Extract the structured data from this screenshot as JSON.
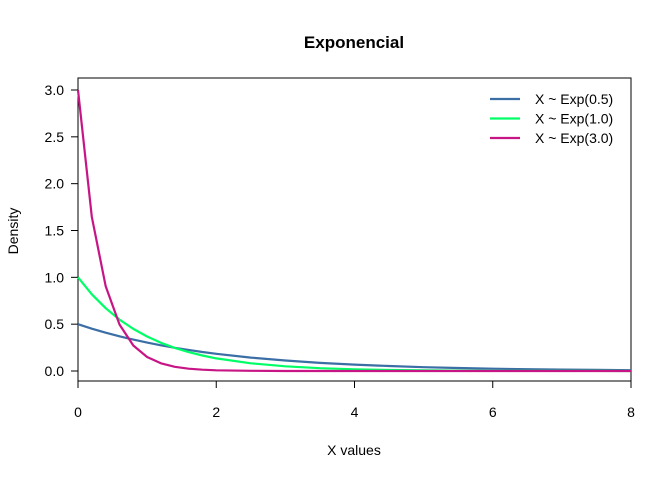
{
  "chart_data": {
    "type": "line",
    "title": "Exponencial",
    "xlabel": "X values",
    "ylabel": "Density",
    "xlim": [
      0,
      8
    ],
    "ylim": [
      0,
      3
    ],
    "xticks": [
      "0",
      "2",
      "4",
      "6",
      "8"
    ],
    "yticks": [
      "0.0",
      "0.5",
      "1.0",
      "1.5",
      "2.0",
      "2.5",
      "3.0"
    ],
    "grid": false,
    "legend_position": "top-right",
    "x": [
      0,
      0.2,
      0.4,
      0.6,
      0.8,
      1.0,
      1.2,
      1.4,
      1.6,
      1.8,
      2.0,
      2.5,
      3.0,
      3.5,
      4.0,
      4.5,
      5.0,
      5.5,
      6.0,
      6.5,
      7.0,
      7.5,
      8.0
    ],
    "series": [
      {
        "name": "X ~ Exp(0.5)",
        "color": "#3a6ea5",
        "values": [
          0.5,
          0.452,
          0.409,
          0.37,
          0.335,
          0.303,
          0.274,
          0.248,
          0.225,
          0.203,
          0.184,
          0.143,
          0.112,
          0.087,
          0.068,
          0.053,
          0.041,
          0.032,
          0.025,
          0.019,
          0.015,
          0.012,
          0.009
        ]
      },
      {
        "name": "X ~ Exp(1.0)",
        "color": "#00ff66",
        "values": [
          1.0,
          0.819,
          0.67,
          0.549,
          0.449,
          0.368,
          0.301,
          0.247,
          0.202,
          0.165,
          0.135,
          0.082,
          0.05,
          0.03,
          0.018,
          0.011,
          0.007,
          0.004,
          0.002,
          0.002,
          0.001,
          0.001,
          0.0
        ]
      },
      {
        "name": "X ~ Exp(3.0)",
        "color": "#c71585",
        "values": [
          3.0,
          1.646,
          0.904,
          0.496,
          0.272,
          0.149,
          0.082,
          0.045,
          0.025,
          0.014,
          0.007,
          0.002,
          0.0,
          0.0,
          0.0,
          0.0,
          0.0,
          0.0,
          0.0,
          0.0,
          0.0,
          0.0,
          0.0
        ]
      }
    ]
  }
}
